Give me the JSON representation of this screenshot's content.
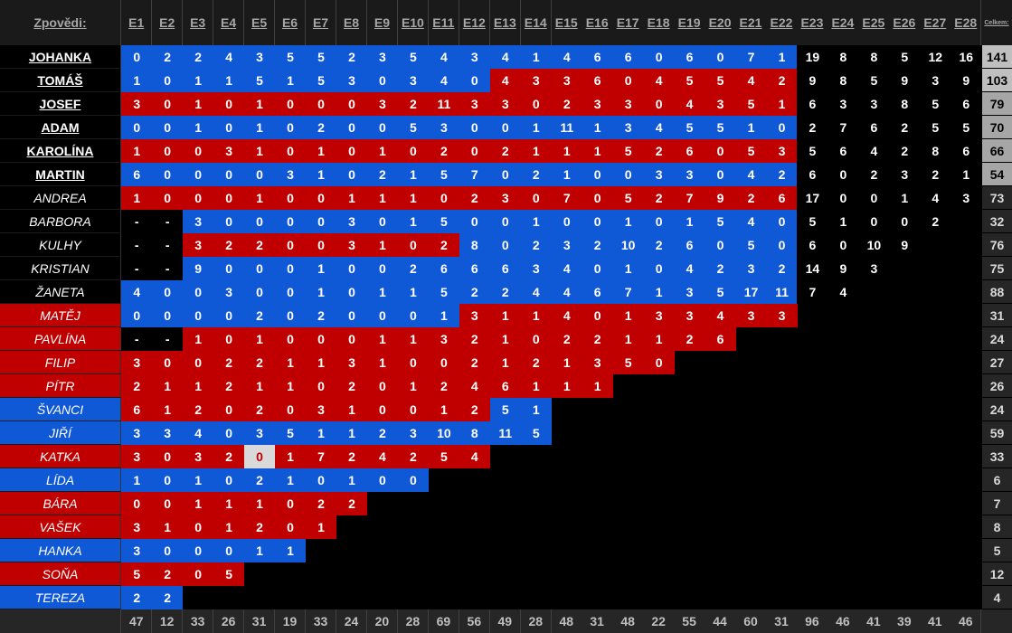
{
  "header": {
    "label": "Zpovědi:",
    "episodes": [
      "E1",
      "E2",
      "E3",
      "E4",
      "E5",
      "E6",
      "E7",
      "E8",
      "E9",
      "E10",
      "E11",
      "E12",
      "E13",
      "E14",
      "E15",
      "E16",
      "E17",
      "E18",
      "E19",
      "E20",
      "E21",
      "E22",
      "E23",
      "E24",
      "E25",
      "E26",
      "E27",
      "E28"
    ],
    "total": "Celkem:"
  },
  "palette": {
    "b": "#1059d6",
    "r": "#c00000",
    "k": "#000000",
    "g": "#d9d9d9",
    "lg": "#bfbfbf",
    "mg": "#a6a6a6",
    "dg": "#262626"
  },
  "rows": [
    {
      "name": "JOHANKA",
      "bold": true,
      "name_bg": "k",
      "values": [
        0,
        2,
        2,
        4,
        3,
        5,
        5,
        2,
        3,
        5,
        4,
        3,
        4,
        1,
        4,
        6,
        6,
        0,
        6,
        0,
        7,
        1,
        19,
        8,
        8,
        5,
        12,
        16
      ],
      "colors": "bbbbbbbbbbbbbbbbbbbbbbkkkkkk",
      "total": 141,
      "total_bg": "lg"
    },
    {
      "name": "TOMÁŠ",
      "bold": true,
      "name_bg": "k",
      "values": [
        1,
        0,
        1,
        1,
        5,
        1,
        5,
        3,
        0,
        3,
        4,
        0,
        4,
        3,
        3,
        6,
        0,
        4,
        5,
        5,
        4,
        2,
        9,
        8,
        5,
        9,
        3,
        9
      ],
      "colors": "bbbbbbbbbbbbrrrrrrrrrrkkkkkk",
      "total": 103,
      "total_bg": "lg"
    },
    {
      "name": "JOSEF",
      "bold": true,
      "name_bg": "k",
      "values": [
        3,
        0,
        1,
        0,
        1,
        0,
        0,
        0,
        3,
        2,
        11,
        3,
        3,
        0,
        2,
        3,
        3,
        0,
        4,
        3,
        5,
        1,
        6,
        3,
        3,
        8,
        5,
        6
      ],
      "colors": "rrrrrrrrrrrrrrrrrrrrrrkkkkkk",
      "total": 79,
      "total_bg": "mg"
    },
    {
      "name": "ADAM",
      "bold": true,
      "name_bg": "k",
      "values": [
        0,
        0,
        1,
        0,
        1,
        0,
        2,
        0,
        0,
        5,
        3,
        0,
        0,
        1,
        11,
        1,
        3,
        4,
        5,
        5,
        1,
        0,
        2,
        7,
        6,
        2,
        5,
        5
      ],
      "colors": "bbbbbbbbbbbbbbbbbbbbbbkkkkkk",
      "total": 70,
      "total_bg": "mg"
    },
    {
      "name": "KAROLÍNA",
      "bold": true,
      "name_bg": "k",
      "values": [
        1,
        0,
        0,
        3,
        1,
        0,
        1,
        0,
        1,
        0,
        2,
        0,
        2,
        1,
        1,
        1,
        5,
        2,
        6,
        0,
        5,
        3,
        5,
        6,
        4,
        2,
        8,
        6
      ],
      "colors": "rrrrrrrrrrrrrrrrrrrrrrkkkkkk",
      "total": 66,
      "total_bg": "mg"
    },
    {
      "name": "MARTIN",
      "bold": true,
      "name_bg": "k",
      "values": [
        6,
        0,
        0,
        0,
        0,
        3,
        1,
        0,
        2,
        1,
        5,
        7,
        0,
        2,
        1,
        0,
        0,
        3,
        3,
        0,
        4,
        2,
        6,
        0,
        2,
        3,
        2,
        1
      ],
      "colors": "bbbbbbbbbbbbbbbbbbbbbbkkkkkk",
      "total": 54,
      "total_bg": "mg"
    },
    {
      "name": "ANDREA",
      "bold": false,
      "name_bg": "k",
      "values": [
        1,
        0,
        0,
        0,
        1,
        0,
        0,
        1,
        1,
        1,
        0,
        2,
        3,
        0,
        7,
        0,
        5,
        2,
        7,
        9,
        2,
        6,
        17,
        0,
        0,
        1,
        4,
        3
      ],
      "colors": "rrrrrrrrrrrrrrrrrrrrrrkkkkkk",
      "total": 73,
      "total_bg": "dg"
    },
    {
      "name": "BARBORA",
      "bold": false,
      "name_bg": "k",
      "values": [
        "-",
        "-",
        3,
        0,
        0,
        0,
        0,
        3,
        0,
        1,
        5,
        0,
        0,
        1,
        0,
        0,
        1,
        0,
        1,
        5,
        4,
        0,
        5,
        1,
        0,
        0,
        2
      ],
      "colors": "kkbbbbbbbbbbbbbbbbbbbbkkkkk",
      "total": 32,
      "total_bg": "dg"
    },
    {
      "name": "KULHY",
      "bold": false,
      "name_bg": "k",
      "values": [
        "-",
        "-",
        3,
        2,
        2,
        0,
        0,
        3,
        1,
        0,
        2,
        8,
        0,
        2,
        3,
        2,
        10,
        2,
        6,
        0,
        5,
        0,
        6,
        0,
        10,
        9
      ],
      "colors": "kkrrrrrrrrrbbbbbbbbbbbkkkk",
      "total": 76,
      "total_bg": "dg"
    },
    {
      "name": "KRISTIAN",
      "bold": false,
      "name_bg": "k",
      "values": [
        "-",
        "-",
        9,
        0,
        0,
        0,
        1,
        0,
        0,
        2,
        6,
        6,
        6,
        3,
        4,
        0,
        1,
        0,
        4,
        2,
        3,
        2,
        14,
        9,
        3
      ],
      "colors": "kkbbbbbbbbbbbbbbbbbbbbkkk",
      "total": 75,
      "total_bg": "dg"
    },
    {
      "name": "ŽANETA",
      "bold": false,
      "name_bg": "k",
      "values": [
        4,
        0,
        0,
        3,
        0,
        0,
        1,
        0,
        1,
        1,
        5,
        2,
        2,
        4,
        4,
        6,
        7,
        1,
        3,
        5,
        17,
        11,
        7,
        4
      ],
      "colors": "bbbbbbbbbbbbbbbbbbbbbbkk",
      "total": 88,
      "total_bg": "dg"
    },
    {
      "name": "MATĚJ",
      "bold": false,
      "name_bg": "r",
      "values": [
        0,
        0,
        0,
        0,
        2,
        0,
        2,
        0,
        0,
        0,
        1,
        3,
        1,
        1,
        4,
        0,
        1,
        3,
        3,
        4,
        3,
        3
      ],
      "colors": "bbbbbbbbbbbrrrrrrrrrrr",
      "total": 31,
      "total_bg": "dg"
    },
    {
      "name": "PAVLÍNA",
      "bold": false,
      "name_bg": "r",
      "values": [
        "-",
        "-",
        1,
        0,
        1,
        0,
        0,
        0,
        1,
        1,
        3,
        2,
        1,
        0,
        2,
        2,
        1,
        1,
        2,
        6
      ],
      "colors": "kkrrrrrrrrrrrrrrrrrr",
      "total": 24,
      "total_bg": "dg"
    },
    {
      "name": "FILIP",
      "bold": false,
      "name_bg": "r",
      "values": [
        3,
        0,
        0,
        2,
        2,
        1,
        1,
        3,
        1,
        0,
        0,
        2,
        1,
        2,
        1,
        3,
        5,
        0
      ],
      "colors": "rrrrrrrrrrrrrrrrrr",
      "total": 27,
      "total_bg": "dg"
    },
    {
      "name": "PÍTR",
      "bold": false,
      "name_bg": "r",
      "values": [
        2,
        1,
        1,
        2,
        1,
        1,
        0,
        2,
        0,
        1,
        2,
        4,
        6,
        1,
        1,
        1
      ],
      "colors": "rrrrrrrrrrrrrrrr",
      "total": 26,
      "total_bg": "dg"
    },
    {
      "name": "ŠVANCI",
      "bold": false,
      "name_bg": "b",
      "values": [
        6,
        1,
        2,
        0,
        2,
        0,
        3,
        1,
        0,
        0,
        1,
        2,
        5,
        1
      ],
      "colors": "rrrrrrrrrrrrbb",
      "total": 24,
      "total_bg": "dg"
    },
    {
      "name": "JIŘÍ",
      "bold": false,
      "name_bg": "b",
      "values": [
        3,
        3,
        4,
        0,
        3,
        5,
        1,
        1,
        2,
        3,
        10,
        8,
        11,
        5
      ],
      "colors": "bbbbbbbbbbbbbb",
      "total": 59,
      "total_bg": "dg"
    },
    {
      "name": "KATKA",
      "bold": false,
      "name_bg": "r",
      "values": [
        3,
        0,
        3,
        2,
        0,
        1,
        7,
        2,
        4,
        2,
        5,
        4
      ],
      "colors": "rrrrgrrrrrrr",
      "total": 33,
      "total_bg": "dg"
    },
    {
      "name": "LÍDA",
      "bold": false,
      "name_bg": "b",
      "values": [
        1,
        0,
        1,
        0,
        2,
        1,
        0,
        1,
        0,
        0
      ],
      "colors": "bbbbbbbbbb",
      "total": 6,
      "total_bg": "dg"
    },
    {
      "name": "BÁRA",
      "bold": false,
      "name_bg": "r",
      "values": [
        0,
        0,
        1,
        1,
        1,
        0,
        2,
        2
      ],
      "colors": "rrrrrrrr",
      "total": 7,
      "total_bg": "dg"
    },
    {
      "name": "VAŠEK",
      "bold": false,
      "name_bg": "r",
      "values": [
        3,
        1,
        0,
        1,
        2,
        0,
        1
      ],
      "colors": "rrrrrrr",
      "total": 8,
      "total_bg": "dg"
    },
    {
      "name": "HANKA",
      "bold": false,
      "name_bg": "b",
      "values": [
        3,
        0,
        0,
        0,
        1,
        1
      ],
      "colors": "bbbbbb",
      "total": 5,
      "total_bg": "dg"
    },
    {
      "name": "SOŇA",
      "bold": false,
      "name_bg": "r",
      "values": [
        5,
        2,
        0,
        5
      ],
      "colors": "rrrr",
      "total": 12,
      "total_bg": "dg"
    },
    {
      "name": "TEREZA",
      "bold": false,
      "name_bg": "b",
      "values": [
        2,
        2
      ],
      "colors": "bb",
      "total": 4,
      "total_bg": "dg"
    }
  ],
  "footer": [
    47,
    12,
    33,
    26,
    31,
    19,
    33,
    24,
    20,
    28,
    69,
    56,
    49,
    28,
    48,
    31,
    48,
    22,
    55,
    44,
    60,
    31,
    96,
    46,
    41,
    39,
    41,
    46
  ]
}
